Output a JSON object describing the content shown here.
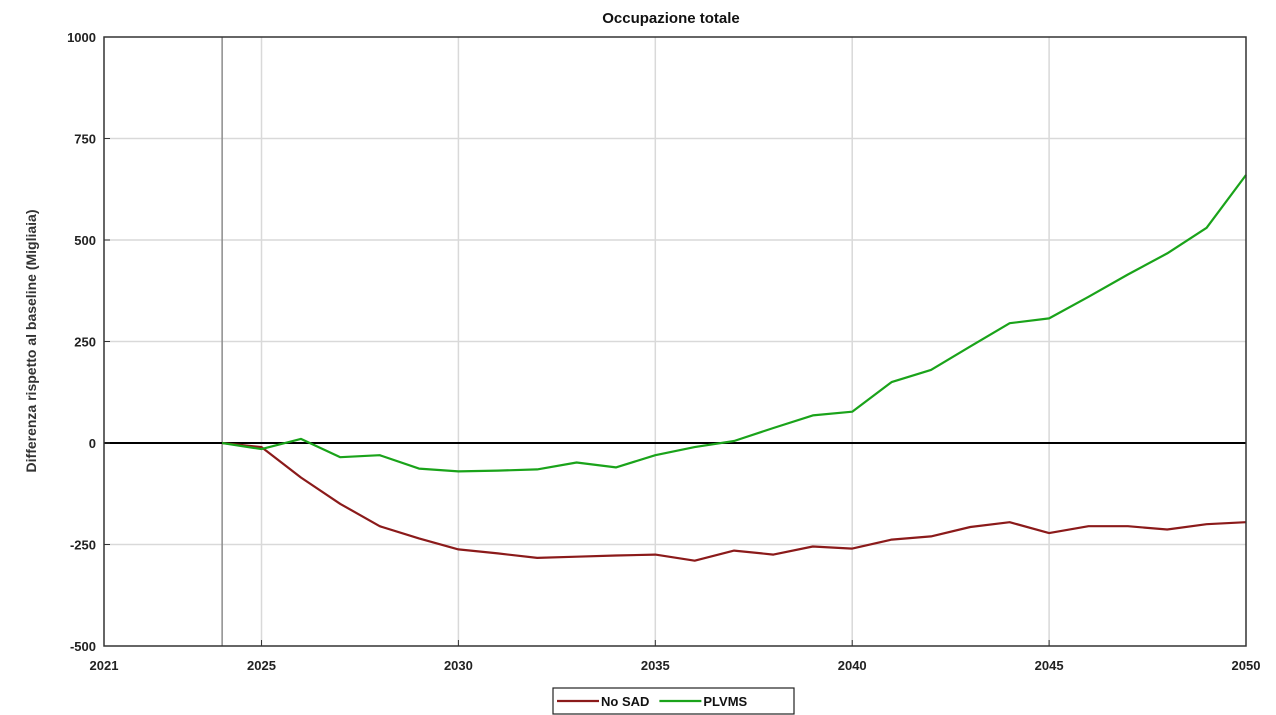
{
  "chart_data": {
    "type": "line",
    "title": "Occupazione totale",
    "xlabel": "",
    "ylabel": "Differenza rispetto al baseline (Migliaia)",
    "xlim": [
      2021,
      2050
    ],
    "ylim": [
      -500,
      1000
    ],
    "xticks": [
      2021,
      2025,
      2030,
      2035,
      2040,
      2045,
      2050
    ],
    "yticks": [
      1000,
      750,
      500,
      250,
      0,
      -250,
      -500
    ],
    "grid": true,
    "reference_lines": {
      "horizontal_zero": 0,
      "vertical_x": 2024
    },
    "legend_position": "bottom-center",
    "series": [
      {
        "name": "No SAD",
        "color": "#8b1a1a",
        "x": [
          2024,
          2025,
          2026,
          2027,
          2028,
          2029,
          2030,
          2031,
          2032,
          2033,
          2034,
          2035,
          2036,
          2037,
          2038,
          2039,
          2040,
          2041,
          2042,
          2043,
          2044,
          2045,
          2046,
          2047,
          2048,
          2049,
          2050
        ],
        "values": [
          0,
          -10,
          -85,
          -150,
          -205,
          -235,
          -262,
          -272,
          -283,
          -280,
          -277,
          -275,
          -290,
          -265,
          -275,
          -255,
          -260,
          -238,
          -230,
          -207,
          -195,
          -222,
          -205,
          -205,
          -213,
          -200,
          -195
        ]
      },
      {
        "name": "PLVMS",
        "color": "#1aa31a",
        "x": [
          2024,
          2025,
          2026,
          2027,
          2028,
          2029,
          2030,
          2031,
          2032,
          2033,
          2034,
          2035,
          2036,
          2037,
          2038,
          2039,
          2040,
          2041,
          2042,
          2043,
          2044,
          2045,
          2046,
          2047,
          2048,
          2049,
          2050
        ],
        "values": [
          0,
          -15,
          10,
          -35,
          -30,
          -63,
          -70,
          -68,
          -65,
          -48,
          -60,
          -30,
          -10,
          5,
          37,
          68,
          77,
          150,
          180,
          238,
          295,
          307,
          360,
          415,
          467,
          530,
          660
        ]
      }
    ]
  },
  "colors": {
    "grid": "#d9d9d9",
    "axis": "#333333",
    "zero_line": "#000000",
    "ref_line": "#8c8c8c"
  }
}
